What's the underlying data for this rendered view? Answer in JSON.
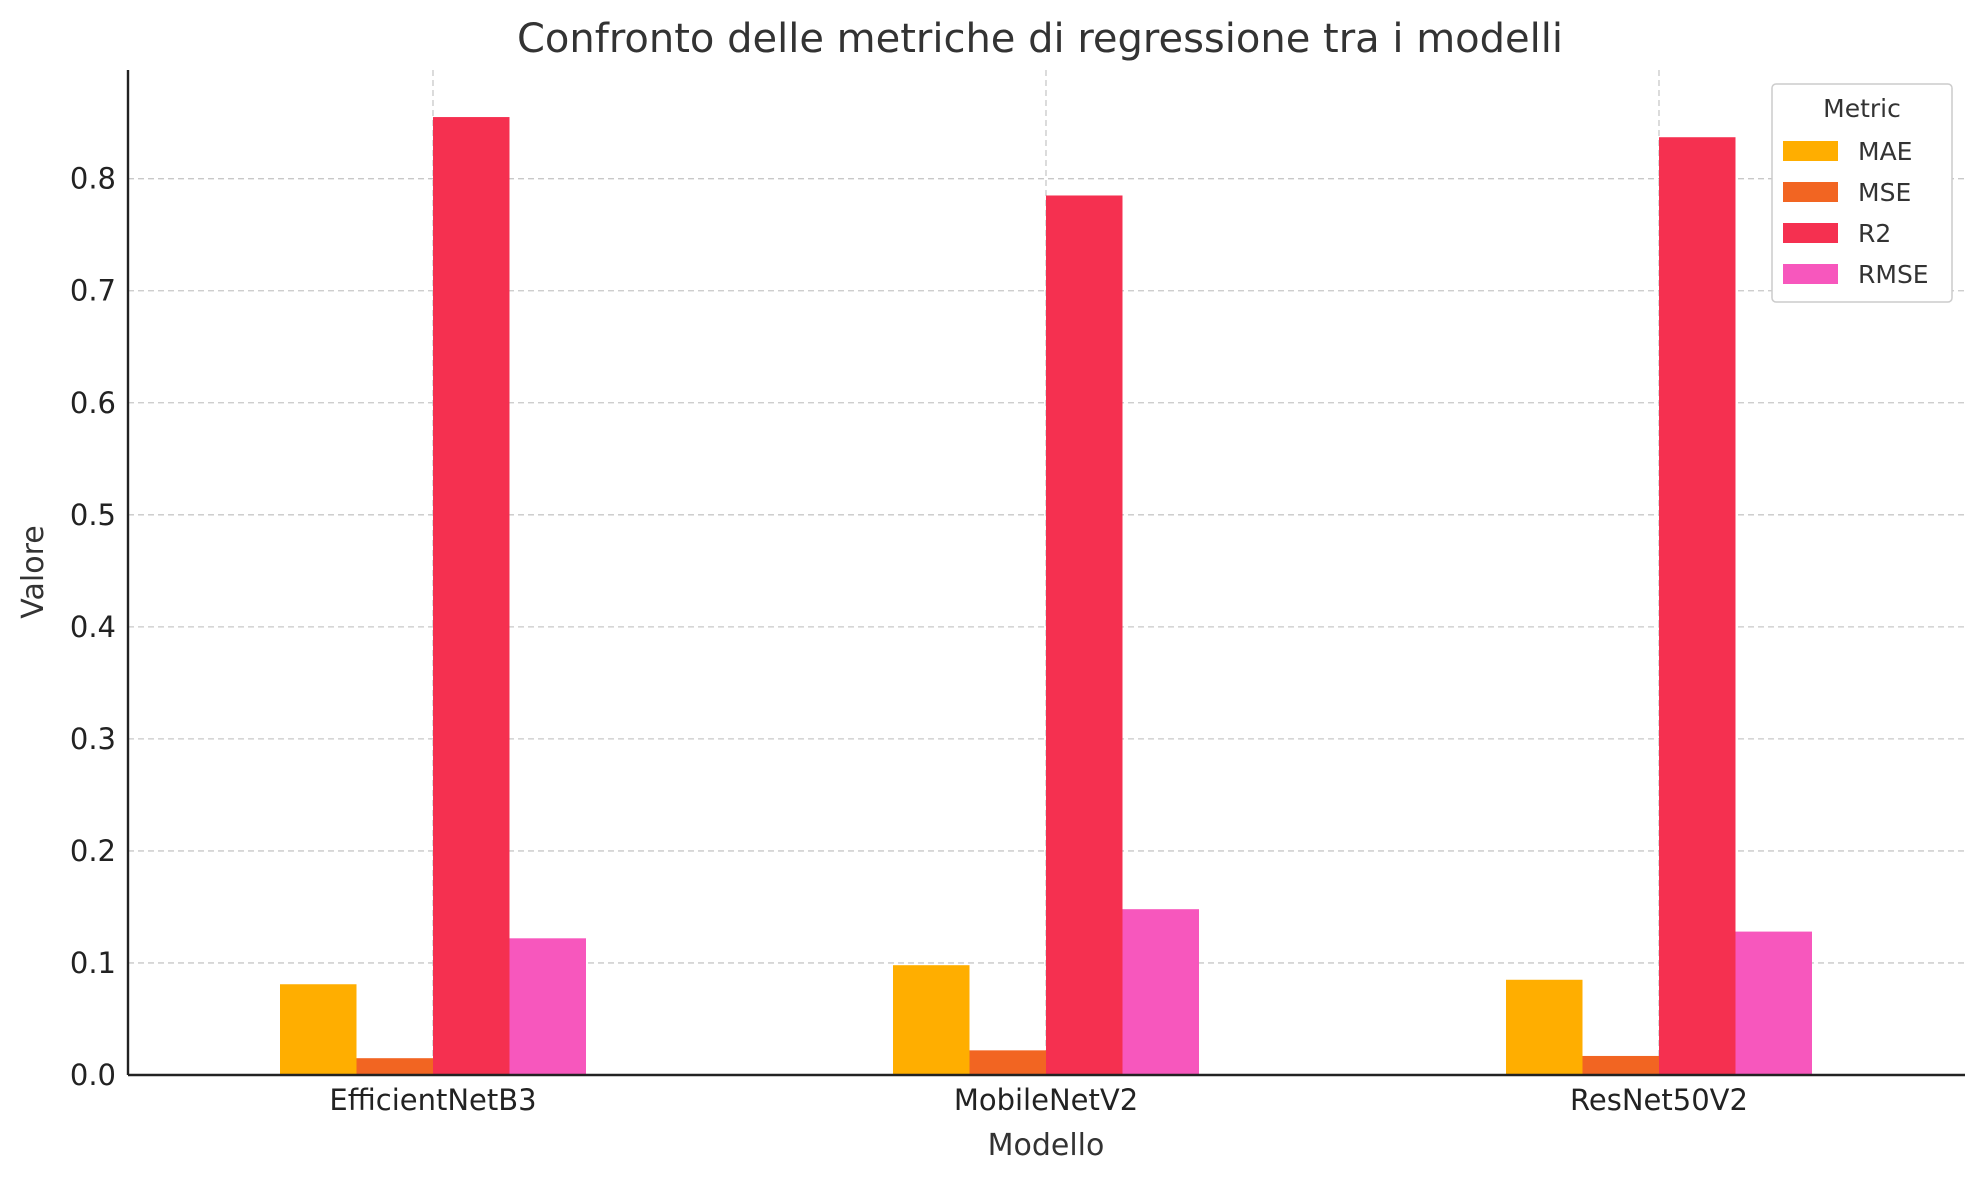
{
  "chart_data": {
    "type": "bar",
    "title": "Confronto delle metriche di regressione tra i modelli",
    "xlabel": "Modello",
    "ylabel": "Valore",
    "categories": [
      "EfficientNetB3",
      "MobileNetV2",
      "ResNet50V2"
    ],
    "series": [
      {
        "name": "MAE",
        "color": "#ffae00",
        "values": [
          0.081,
          0.098,
          0.085
        ]
      },
      {
        "name": "MSE",
        "color": "#f26522",
        "values": [
          0.015,
          0.022,
          0.017
        ]
      },
      {
        "name": "R2",
        "color": "#f53050",
        "values": [
          0.855,
          0.785,
          0.837
        ]
      },
      {
        "name": "RMSE",
        "color": "#f757bd",
        "values": [
          0.122,
          0.148,
          0.128
        ]
      }
    ],
    "ylim": [
      0,
      0.897
    ],
    "yticks": [
      "0.0",
      "0.1",
      "0.2",
      "0.3",
      "0.4",
      "0.5",
      "0.6",
      "0.7",
      "0.8"
    ],
    "grid": true,
    "legend": {
      "title": "Metric",
      "placement": "top-right"
    }
  }
}
